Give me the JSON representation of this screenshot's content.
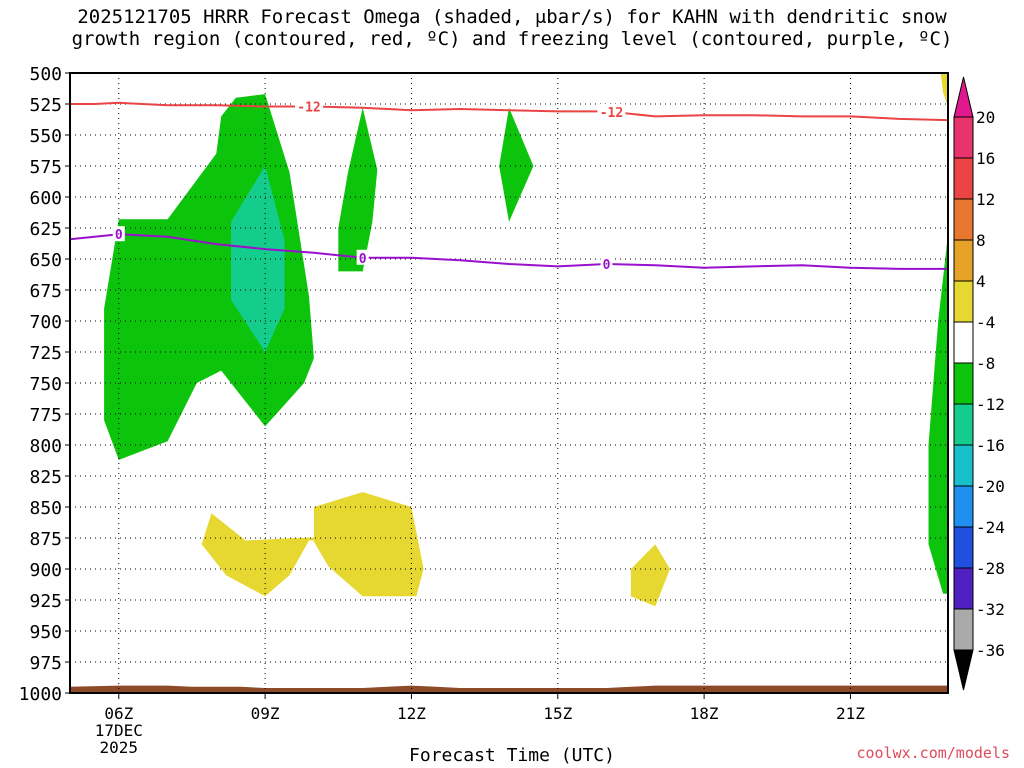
{
  "title_line1": "2025121705 HRRR Forecast Omega (shaded, μbar/s) for KAHN with dendritic snow",
  "title_line2": "growth region (contoured, red, ºC) and freezing level (contoured, purple, ºC)",
  "credit": "coolwx.com/models",
  "chart_data": {
    "type": "time-height contour",
    "xlabel": "Forecast Time (UTC)",
    "x_ticks": [
      {
        "hour": 6,
        "label": "06Z",
        "sub1": "17DEC",
        "sub2": "2025"
      },
      {
        "hour": 9,
        "label": "09Z"
      },
      {
        "hour": 12,
        "label": "12Z"
      },
      {
        "hour": 15,
        "label": "15Z"
      },
      {
        "hour": 18,
        "label": "18Z"
      },
      {
        "hour": 21,
        "label": "21Z"
      }
    ],
    "xlim": [
      5.0,
      23.0
    ],
    "y_ticks": [
      500,
      525,
      550,
      575,
      600,
      625,
      650,
      675,
      700,
      725,
      750,
      775,
      800,
      825,
      850,
      875,
      900,
      925,
      950,
      975,
      1000
    ],
    "ylim": [
      500,
      1000
    ],
    "y_axis": "pressure (hPa), linear, inverted (500 at top)",
    "grid": true,
    "colorbar": {
      "labels": [
        "20",
        "16",
        "12",
        "8",
        "4",
        "-4",
        "-8",
        "-12",
        "-16",
        "-20",
        "-24",
        "-28",
        "-32",
        "-36"
      ],
      "colors": [
        "#e8336c",
        "#ea4444",
        "#ea7730",
        "#e6a228",
        "#e6d831",
        "#ffffff",
        "#0cc40c",
        "#14cc8c",
        "#18c0cc",
        "#2090f0",
        "#2050e0",
        "#5020c0",
        "#9010c0",
        "#aaaaaa"
      ],
      "top_arrow_color": "#e01a8c",
      "bottom_arrow_color": "#000000"
    },
    "contours": [
      {
        "name": "-12",
        "color": "#ea4444",
        "x": [
          5.0,
          5.5,
          6.0,
          7.0,
          8.0,
          9.0,
          10.0,
          11.0,
          12.0,
          13.0,
          14.0,
          15.0,
          16.0,
          17.0,
          18.0,
          19.0,
          20.0,
          21.0,
          22.0,
          23.0
        ],
        "y": [
          525,
          525,
          524,
          526,
          526,
          527,
          527,
          528,
          530,
          529,
          530,
          531,
          531,
          535,
          534,
          534,
          535,
          535,
          537,
          538
        ],
        "labels_at_x": [
          9.9,
          16.1
        ]
      },
      {
        "name": "0",
        "color": "#9910cc",
        "x": [
          5.0,
          6.0,
          7.0,
          8.0,
          9.0,
          10.0,
          11.0,
          12.0,
          13.0,
          14.0,
          15.0,
          16.0,
          17.0,
          18.0,
          19.0,
          20.0,
          21.0,
          22.0,
          23.0
        ],
        "y": [
          634,
          630,
          632,
          638,
          642,
          645,
          649,
          649,
          651,
          654,
          656,
          654,
          655,
          657,
          656,
          655,
          657,
          658,
          658
        ],
        "labels_at_x": [
          6.0,
          11.0,
          16.0
        ]
      }
    ],
    "shaded_regions": [
      {
        "level": "-4 to -8",
        "color": "#0cc40c",
        "points": [
          [
            6.0,
            618
          ],
          [
            7.0,
            618
          ],
          [
            8.0,
            565
          ],
          [
            8.1,
            535
          ],
          [
            8.4,
            520
          ],
          [
            9.0,
            517
          ],
          [
            9.5,
            580
          ],
          [
            9.9,
            680
          ],
          [
            10.0,
            730
          ],
          [
            9.8,
            750
          ],
          [
            9.0,
            785
          ],
          [
            8.1,
            740
          ],
          [
            7.6,
            750
          ],
          [
            7.0,
            797
          ],
          [
            6.0,
            812
          ],
          [
            5.7,
            780
          ],
          [
            5.7,
            690
          ]
        ]
      },
      {
        "level": "-8 to -12",
        "color": "#14cc8c",
        "points": [
          [
            9.0,
            575
          ],
          [
            9.4,
            635
          ],
          [
            9.4,
            690
          ],
          [
            9.0,
            725
          ],
          [
            8.3,
            683
          ],
          [
            8.3,
            620
          ]
        ]
      },
      {
        "level": "-4 to -8",
        "color": "#0cc40c",
        "points": [
          [
            11.0,
            528
          ],
          [
            11.3,
            578
          ],
          [
            11.2,
            620
          ],
          [
            11.0,
            660
          ],
          [
            10.5,
            660
          ],
          [
            10.5,
            625
          ],
          [
            10.7,
            580
          ]
        ]
      },
      {
        "level": "-4 to -8",
        "color": "#0cc40c",
        "points": [
          [
            14.0,
            528
          ],
          [
            14.5,
            575
          ],
          [
            14.0,
            620
          ],
          [
            13.8,
            575
          ]
        ]
      },
      {
        "level": "-4 to -8",
        "color": "#0cc40c",
        "points": [
          [
            23.0,
            630
          ],
          [
            22.8,
            700
          ],
          [
            22.6,
            800
          ],
          [
            22.6,
            880
          ],
          [
            22.9,
            920
          ],
          [
            23.0,
            920
          ]
        ]
      },
      {
        "level": "4 to 8",
        "color": "#e6d831",
        "points": [
          [
            22.85,
            500
          ],
          [
            23.0,
            500
          ],
          [
            23.0,
            527
          ],
          [
            22.9,
            516
          ]
        ]
      },
      {
        "level": "4 to 8",
        "color": "#e6d831",
        "points": [
          [
            7.9,
            855
          ],
          [
            8.6,
            877
          ],
          [
            9.6,
            875
          ],
          [
            10.8,
            874
          ],
          [
            10.4,
            877
          ],
          [
            9.9,
            877
          ],
          [
            9.5,
            905
          ],
          [
            9.0,
            922
          ],
          [
            8.2,
            905
          ],
          [
            7.7,
            880
          ]
        ]
      },
      {
        "level": "4 to 8",
        "color": "#e6d831",
        "points": [
          [
            10.0,
            850
          ],
          [
            11.0,
            838
          ],
          [
            12.0,
            850
          ],
          [
            12.25,
            900
          ],
          [
            12.1,
            922
          ],
          [
            11.0,
            922
          ],
          [
            10.3,
            898
          ],
          [
            10.0,
            878
          ]
        ]
      },
      {
        "level": "4 to 8",
        "color": "#e6d831",
        "points": [
          [
            16.5,
            900
          ],
          [
            17.0,
            880
          ],
          [
            17.3,
            900
          ],
          [
            17.0,
            930
          ],
          [
            16.5,
            922
          ]
        ]
      }
    ],
    "terrain": {
      "color": "#8c4a28",
      "x": [
        5.0,
        6.0,
        7.0,
        7.5,
        8.5,
        9.0,
        10.0,
        11.0,
        11.5,
        12.0,
        12.5,
        13.0,
        14.0,
        15.0,
        16.0,
        17.0,
        18.0,
        19.0,
        20.0,
        21.0,
        22.0,
        23.0
      ],
      "y": [
        995,
        994,
        994,
        995,
        995,
        996,
        996,
        996,
        995,
        994,
        995,
        996,
        996,
        996,
        996,
        994,
        994,
        994,
        994,
        994,
        994,
        994
      ]
    }
  }
}
